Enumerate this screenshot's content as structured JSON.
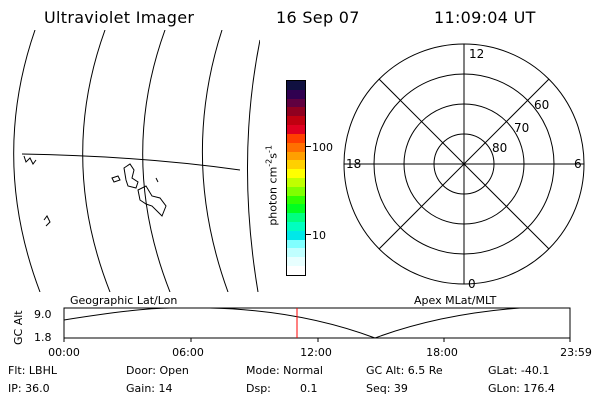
{
  "header": {
    "instrument": "Ultraviolet Imager",
    "date": "16 Sep 07",
    "time": "11:09:04 UT"
  },
  "colorbar": {
    "unit_label": "photon cm",
    "unit_exp1": "-2",
    "unit_mid": "s",
    "unit_exp2": "-1",
    "tick_100": "100",
    "tick_10": "10",
    "colors": [
      "#101040",
      "#300050",
      "#600040",
      "#900020",
      "#c00010",
      "#e00020",
      "#ff4000",
      "#ff7000",
      "#ffa000",
      "#ffd000",
      "#ffff00",
      "#c0ff00",
      "#80ff00",
      "#30ff00",
      "#00ff20",
      "#00ff80",
      "#00ffc0",
      "#00e8e8",
      "#80ffff",
      "#c0ffff",
      "#e8ffff",
      "#ffffff"
    ]
  },
  "polar": {
    "mlt_top": "12",
    "mlt_left": "18",
    "mlt_right": "6",
    "mlt_bottom": "0",
    "lat_60": "60",
    "lat_70": "70",
    "lat_80": "80"
  },
  "panel_labels": {
    "left": "Geographic Lat/Lon",
    "right": "Apex MLat/MLT"
  },
  "timeline": {
    "ylabel": "GC Alt",
    "ymax": "9.0",
    "ymin": "1.8",
    "ticks": [
      "00:00",
      "06:00",
      "12:00",
      "18:00",
      "23:59"
    ],
    "marker_color": "#ff0000"
  },
  "info": {
    "filter": "Flt: LBHL",
    "door": "Door: Open",
    "mode": "Mode: Normal",
    "gc_alt": "GC Alt: 6.5 Re",
    "glat": "GLat: -40.1",
    "ip": "IP: 36.0",
    "gain": "Gain: 14",
    "dsp_label": "Dsp:",
    "dsp_value": "0.1",
    "seq": "Seq: 39",
    "glon": "GLon: 176.4"
  }
}
